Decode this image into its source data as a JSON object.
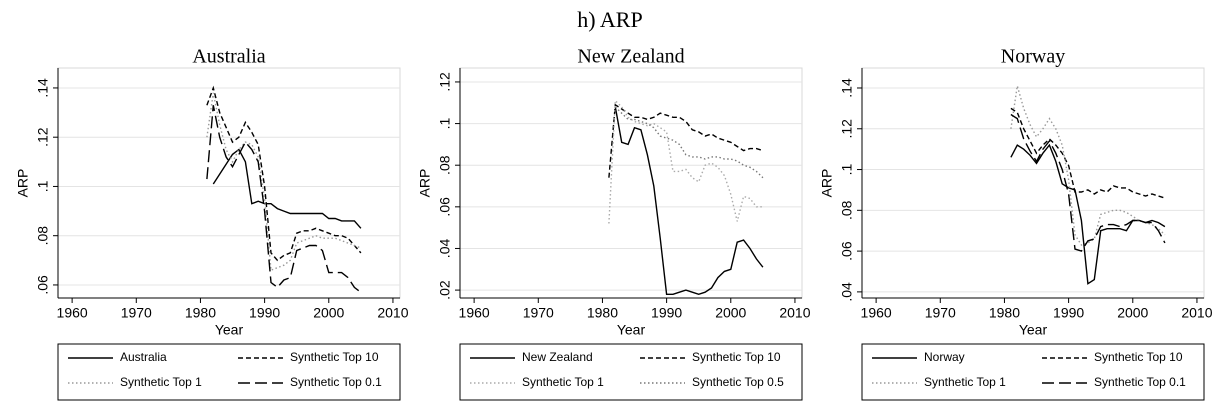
{
  "title": "h) ARP",
  "chart_data": [
    {
      "type": "line",
      "title": "Australia",
      "x_label": "Year",
      "y_label": "ARP",
      "x": [
        1981,
        1982,
        1983,
        1984,
        1985,
        1986,
        1987,
        1988,
        1989,
        1990,
        1991,
        1992,
        1993,
        1994,
        1995,
        1996,
        1997,
        1998,
        1999,
        2000,
        2001,
        2002,
        2003,
        2004,
        2005
      ],
      "xlim": [
        1957.8,
        2011.1
      ],
      "xticks": [
        1960,
        1970,
        1980,
        1990,
        2000,
        2010
      ],
      "ylim": [
        0.0547,
        0.1481
      ],
      "yticks": [
        {
          "value": 0.06,
          "label": ".06"
        },
        {
          "value": 0.08,
          "label": ".08"
        },
        {
          "value": 0.1,
          "label": ".1"
        },
        {
          "value": 0.12,
          "label": ".12"
        },
        {
          "value": 0.14,
          "label": ".14"
        }
      ],
      "grid": true,
      "series": [
        {
          "name": "Australia",
          "color": "#000000",
          "dash": "solid",
          "values": [
            null,
            0.101,
            0.105,
            0.109,
            0.113,
            0.115,
            0.11,
            0.093,
            0.094,
            0.093,
            0.093,
            0.091,
            0.09,
            0.089,
            0.089,
            0.089,
            0.089,
            0.089,
            0.089,
            0.087,
            0.087,
            0.086,
            0.086,
            0.086,
            0.083
          ]
        },
        {
          "name": "Synthetic Top 10",
          "color": "#000000",
          "dash": "short",
          "values": [
            0.133,
            0.14,
            0.13,
            0.124,
            0.118,
            0.12,
            0.126,
            0.122,
            0.117,
            0.1,
            0.073,
            0.07,
            0.072,
            0.073,
            0.081,
            0.082,
            0.082,
            0.083,
            0.082,
            0.081,
            0.08,
            0.08,
            0.079,
            0.076,
            0.073
          ]
        },
        {
          "name": "Synthetic Top 1",
          "color": "#999999",
          "dash": "dot",
          "values": [
            0.12,
            0.138,
            0.125,
            0.115,
            0.11,
            0.115,
            0.118,
            0.117,
            0.112,
            0.095,
            0.066,
            0.067,
            0.068,
            0.07,
            0.077,
            0.078,
            0.079,
            0.08,
            0.079,
            0.079,
            0.079,
            0.078,
            0.077,
            0.076,
            0.075
          ]
        },
        {
          "name": "Synthetic Top 0.1",
          "color": "#000000",
          "dash": "long",
          "values": [
            0.103,
            0.133,
            0.12,
            0.112,
            0.108,
            0.113,
            0.118,
            0.115,
            0.11,
            0.09,
            0.061,
            0.059,
            0.062,
            0.063,
            0.074,
            0.075,
            0.076,
            0.076,
            0.074,
            0.065,
            0.065,
            0.065,
            0.063,
            0.059,
            0.057
          ]
        }
      ]
    },
    {
      "type": "line",
      "title": "New Zealand",
      "x_label": "Year",
      "y_label": "ARP",
      "x": [
        1981,
        1982,
        1983,
        1984,
        1985,
        1986,
        1987,
        1988,
        1989,
        1990,
        1991,
        1992,
        1993,
        1994,
        1995,
        1996,
        1997,
        1998,
        1999,
        2000,
        2001,
        2002,
        2003,
        2004,
        2005
      ],
      "xlim": [
        1957.8,
        2011.1
      ],
      "xticks": [
        1960,
        1970,
        1980,
        1990,
        2000,
        2010
      ],
      "ylim": [
        0.0162,
        0.1267
      ],
      "yticks": [
        {
          "value": 0.02,
          "label": ".02"
        },
        {
          "value": 0.04,
          "label": ".04"
        },
        {
          "value": 0.06,
          "label": ".06"
        },
        {
          "value": 0.08,
          "label": ".08"
        },
        {
          "value": 0.1,
          "label": ".1"
        },
        {
          "value": 0.12,
          "label": ".12"
        }
      ],
      "grid": true,
      "series": [
        {
          "name": "New Zealand",
          "color": "#000000",
          "dash": "solid",
          "values": [
            null,
            0.108,
            0.091,
            0.09,
            0.098,
            0.097,
            0.085,
            0.07,
            0.045,
            0.018,
            0.018,
            0.019,
            0.02,
            0.019,
            0.018,
            0.019,
            0.021,
            0.026,
            0.029,
            0.03,
            0.043,
            0.044,
            0.04,
            0.035,
            0.031
          ]
        },
        {
          "name": "Synthetic Top 10",
          "color": "#000000",
          "dash": "short",
          "values": [
            0.074,
            0.109,
            0.107,
            0.105,
            0.103,
            0.103,
            0.102,
            0.103,
            0.105,
            0.104,
            0.103,
            0.103,
            0.101,
            0.097,
            0.096,
            0.094,
            0.095,
            0.093,
            0.092,
            0.091,
            0.089,
            0.087,
            0.088,
            0.088,
            0.087
          ]
        },
        {
          "name": "Synthetic Top 1",
          "color": "#aaaaaa",
          "dash": "dot",
          "values": [
            0.052,
            0.111,
            0.108,
            0.103,
            0.101,
            0.1,
            0.099,
            0.1,
            0.098,
            0.096,
            0.077,
            0.077,
            0.078,
            0.074,
            0.072,
            0.08,
            0.081,
            0.079,
            0.075,
            0.066,
            0.053,
            0.065,
            0.064,
            0.06,
            0.06
          ]
        },
        {
          "name": "Synthetic Top 0.5",
          "color": "#777777",
          "dash": "dot",
          "values": [
            null,
            0.108,
            0.105,
            0.102,
            0.102,
            0.101,
            0.1,
            0.098,
            0.094,
            0.093,
            0.092,
            0.09,
            0.085,
            0.084,
            0.084,
            0.083,
            0.084,
            0.084,
            0.083,
            0.083,
            0.082,
            0.08,
            0.079,
            0.077,
            0.074
          ]
        }
      ]
    },
    {
      "type": "line",
      "title": "Norway",
      "x_label": "Year",
      "y_label": "ARP",
      "x": [
        1981,
        1982,
        1983,
        1984,
        1985,
        1986,
        1987,
        1988,
        1989,
        1990,
        1991,
        1992,
        1993,
        1994,
        1995,
        1996,
        1997,
        1998,
        1999,
        2000,
        2001,
        2002,
        2003,
        2004,
        2005
      ],
      "xlim": [
        1957.8,
        2011.1
      ],
      "xticks": [
        1960,
        1970,
        1980,
        1990,
        2000,
        2010
      ],
      "ylim": [
        0.037,
        0.1498
      ],
      "yticks": [
        {
          "value": 0.04,
          "label": ".04"
        },
        {
          "value": 0.06,
          "label": ".06"
        },
        {
          "value": 0.08,
          "label": ".08"
        },
        {
          "value": 0.1,
          "label": ".1"
        },
        {
          "value": 0.12,
          "label": ".12"
        },
        {
          "value": 0.14,
          "label": ".14"
        }
      ],
      "grid": true,
      "series": [
        {
          "name": "Norway",
          "color": "#000000",
          "dash": "solid",
          "values": [
            0.106,
            0.112,
            0.11,
            0.107,
            0.103,
            0.108,
            0.112,
            0.104,
            0.093,
            0.091,
            0.09,
            0.075,
            0.044,
            0.046,
            0.07,
            0.071,
            0.071,
            0.071,
            0.07,
            0.075,
            0.075,
            0.074,
            0.075,
            0.074,
            0.072
          ]
        },
        {
          "name": "Synthetic Top 10",
          "color": "#000000",
          "dash": "short",
          "values": [
            0.13,
            0.128,
            0.12,
            0.114,
            0.108,
            0.112,
            0.115,
            0.112,
            0.108,
            0.102,
            0.089,
            0.089,
            0.09,
            0.088,
            0.09,
            0.089,
            0.092,
            0.091,
            0.091,
            0.089,
            0.088,
            0.087,
            0.088,
            0.087,
            0.086
          ]
        },
        {
          "name": "Synthetic Top 1",
          "color": "#999999",
          "dash": "dot",
          "values": [
            0.12,
            0.141,
            0.13,
            0.122,
            0.116,
            0.12,
            0.125,
            0.12,
            0.112,
            0.095,
            0.068,
            0.063,
            0.064,
            0.066,
            0.078,
            0.079,
            0.08,
            0.08,
            0.079,
            0.077,
            0.075,
            0.074,
            0.073,
            0.071,
            0.068
          ]
        },
        {
          "name": "Synthetic Top 0.1",
          "color": "#000000",
          "dash": "long",
          "values": [
            0.127,
            0.125,
            0.115,
            0.109,
            0.104,
            0.11,
            0.114,
            0.108,
            0.1,
            0.088,
            0.061,
            0.06,
            0.065,
            0.066,
            0.072,
            0.073,
            0.073,
            0.072,
            0.073,
            0.075,
            0.075,
            0.074,
            0.074,
            0.07,
            0.064
          ]
        }
      ]
    }
  ]
}
